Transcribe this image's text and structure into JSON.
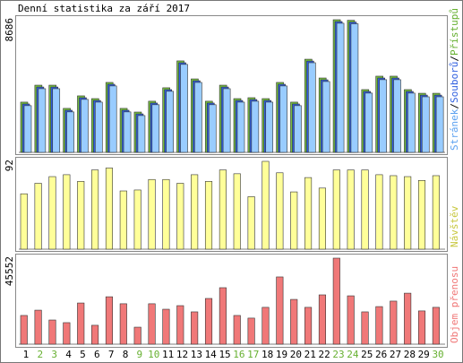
{
  "chart_data": [
    {
      "type": "bar",
      "title": "Denní statistika za září 2017",
      "ylim": [
        0,
        8686
      ],
      "yticks": [
        8686
      ],
      "legend_separator": "/",
      "series": [
        {
          "name": "Přístupů",
          "color": "#77c043",
          "text_color": "#66b030",
          "values": [
            3290,
            4400,
            4400,
            2880,
            3700,
            3520,
            4580,
            2880,
            2640,
            3350,
            4230,
            5990,
            4810,
            3350,
            4400,
            3520,
            3580,
            3520,
            4580,
            3290,
            6100,
            4870,
            8686,
            8650,
            4110,
            4990,
            4990,
            4110,
            3870,
            3870
          ]
        },
        {
          "name": "Souborů",
          "color": "#3060e0",
          "text_color": "#3060e0",
          "values": [
            3170,
            4280,
            4280,
            2760,
            3580,
            3400,
            4460,
            2760,
            2520,
            3230,
            4110,
            5870,
            4690,
            3230,
            4280,
            3400,
            3460,
            3400,
            4460,
            3170,
            5980,
            4750,
            8566,
            8530,
            3990,
            4870,
            4870,
            3990,
            3750,
            3750
          ]
        },
        {
          "name": "Stránek",
          "color": "#99ccff",
          "text_color": "#5aa0f0",
          "values": [
            3060,
            4170,
            4170,
            2650,
            3470,
            3290,
            4350,
            2650,
            2410,
            3120,
            4000,
            5760,
            4580,
            3120,
            4170,
            3290,
            3350,
            3290,
            4350,
            3060,
            5870,
            4640,
            8456,
            8420,
            3880,
            4760,
            4760,
            3880,
            3640,
            3640
          ]
        }
      ]
    },
    {
      "type": "bar",
      "ylim": [
        0,
        92
      ],
      "yticks": [
        92
      ],
      "series": [
        {
          "name": "Návštěv",
          "color": "#ffff99",
          "text_color": "#c8c840",
          "values": [
            58,
            69,
            76,
            78,
            71,
            83,
            85,
            61,
            62,
            73,
            73,
            69,
            78,
            71,
            83,
            79,
            55,
            92,
            80,
            60,
            75,
            64,
            83,
            83,
            83,
            78,
            77,
            76,
            72,
            77
          ]
        }
      ]
    },
    {
      "type": "bar",
      "ylim": [
        0,
        45552
      ],
      "yticks": [
        45552
      ],
      "series": [
        {
          "name": "Objem přenosu",
          "color": "#f07878",
          "text_color": "#f07878",
          "values": [
            15200,
            18000,
            12800,
            11400,
            21800,
            10000,
            25100,
            21400,
            9000,
            21400,
            18500,
            20400,
            17100,
            24200,
            29900,
            15200,
            13800,
            19500,
            35600,
            23700,
            19500,
            26100,
            45552,
            25600,
            17100,
            19900,
            22800,
            27000,
            17600,
            19500
          ]
        }
      ],
      "categories": [
        "1",
        "2",
        "3",
        "4",
        "5",
        "6",
        "7",
        "8",
        "9",
        "10",
        "11",
        "12",
        "13",
        "14",
        "15",
        "16",
        "17",
        "18",
        "19",
        "20",
        "21",
        "22",
        "23",
        "24",
        "25",
        "26",
        "27",
        "28",
        "29",
        "30"
      ],
      "category_colors": [
        "#000",
        "#66b030",
        "#66b030",
        "#000",
        "#000",
        "#000",
        "#000",
        "#000",
        "#66b030",
        "#66b030",
        "#000",
        "#000",
        "#000",
        "#000",
        "#000",
        "#66b030",
        "#66b030",
        "#000",
        "#000",
        "#000",
        "#000",
        "#000",
        "#66b030",
        "#66b030",
        "#000",
        "#000",
        "#000",
        "#000",
        "#000",
        "#66b030"
      ]
    }
  ]
}
